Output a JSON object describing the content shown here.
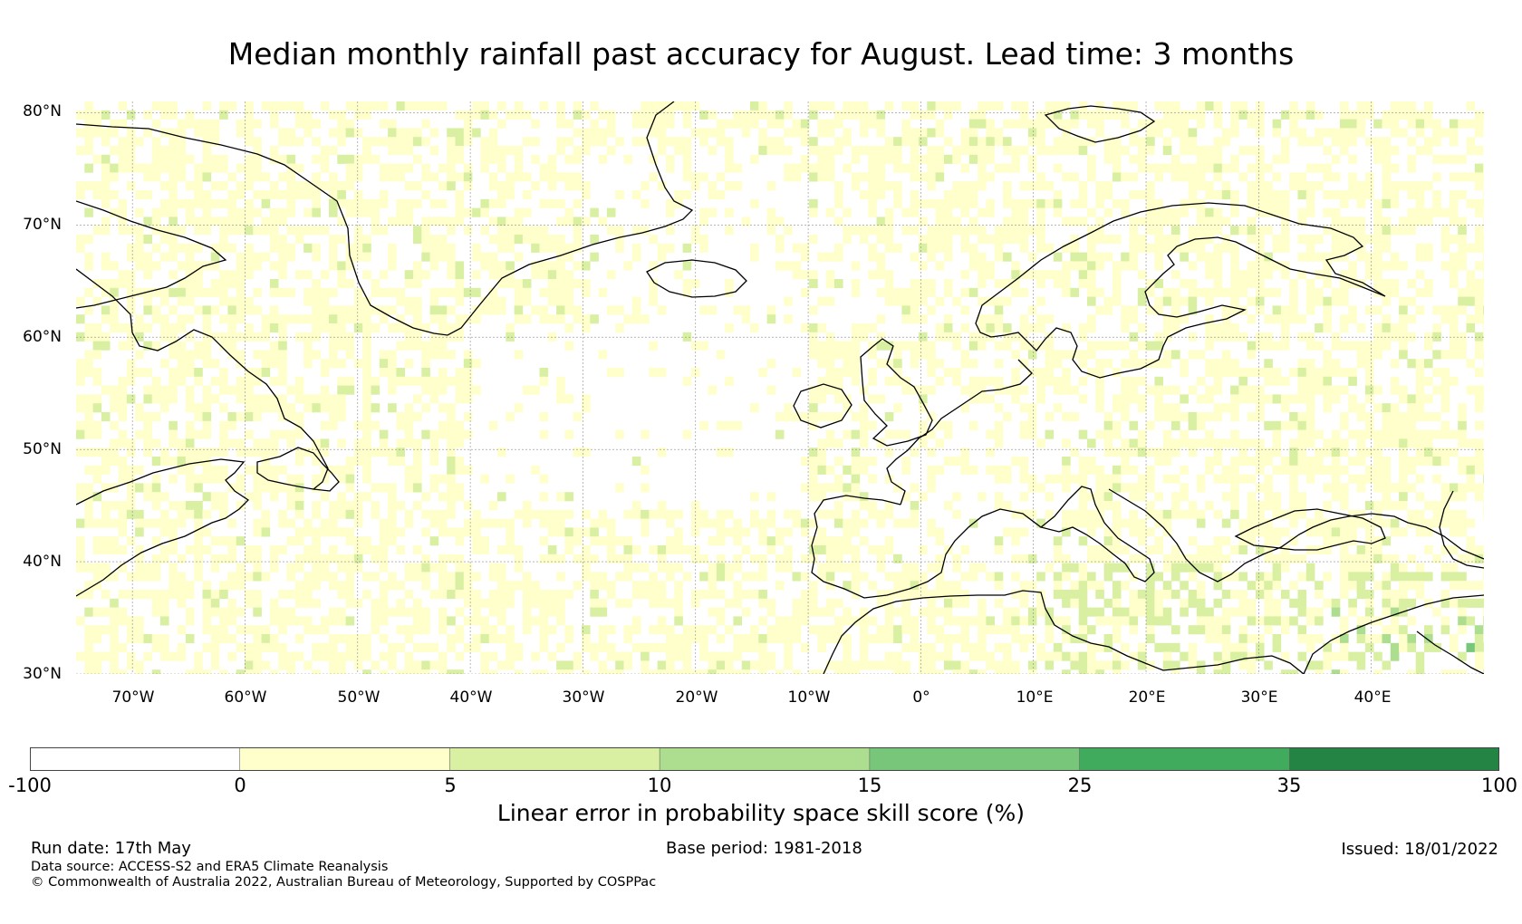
{
  "title": "Median monthly rainfall past accuracy for August. Lead time: 3 months",
  "map": {
    "lat_labels": [
      "80°N",
      "70°N",
      "60°N",
      "50°N",
      "40°N",
      "30°N"
    ],
    "lon_labels": [
      "70°W",
      "60°W",
      "50°W",
      "40°W",
      "30°W",
      "20°W",
      "10°W",
      "0°",
      "10°E",
      "20°E",
      "30°E",
      "40°E"
    ],
    "extent": {
      "lon_min": -75,
      "lon_max": 50,
      "lat_min": 30,
      "lat_max": 81
    }
  },
  "colorbar": {
    "ticks": [
      "-100",
      "0",
      "5",
      "10",
      "15",
      "25",
      "35",
      "100"
    ],
    "colors": [
      "#ffffff",
      "#ffffcc",
      "#d9f0a3",
      "#addd8e",
      "#78c679",
      "#41ab5d",
      "#238443"
    ],
    "label": "Linear error in probability space skill score (%)"
  },
  "footer": {
    "run_date": "Run date: 17th May",
    "base_period": "Base period: 1981-2018",
    "issued": "Issued: 18/01/2022",
    "data_source": "Data source: ACCESS-S2 and ERA5 Climate Reanalysis",
    "copyright": "© Commonwealth of Australia 2022, Australian Bureau of Meteorology, Supported by COSPPac"
  }
}
